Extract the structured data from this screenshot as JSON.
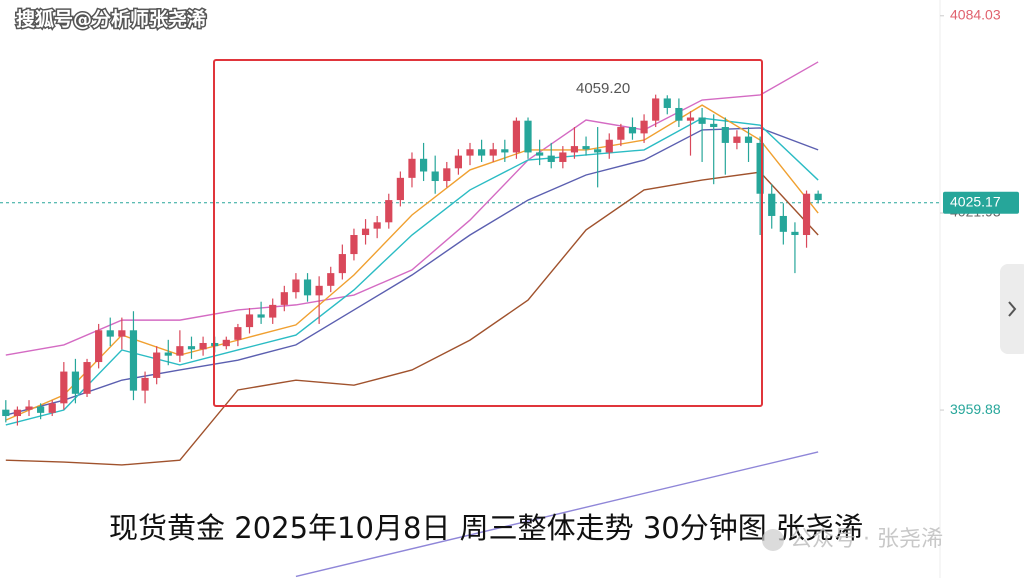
{
  "chart_data": {
    "type": "candlestick",
    "title": "现货黄金 2025年10月8日 周三整体走势 30分钟图 张尧浠",
    "watermark": "搜狐号@分析师张尧浠",
    "footer_watermark": "公众号 · 张尧浠",
    "max_label": "4059.20",
    "current_price": 4025.17,
    "up_color": "#d9485a",
    "down_color": "#26a69a",
    "xlim": [
      -0.5,
      80.5
    ],
    "ylim": [
      3907,
      4089
    ],
    "yticks": [
      4084.03,
      4021.93,
      3959.88
    ],
    "grid": false,
    "x": [
      0,
      1,
      2,
      3,
      4,
      5,
      6,
      7,
      8,
      9,
      10,
      11,
      12,
      13,
      14,
      15,
      16,
      17,
      18,
      19,
      20,
      21,
      22,
      23,
      24,
      25,
      26,
      27,
      28,
      29,
      30,
      31,
      32,
      33,
      34,
      35,
      36,
      37,
      38,
      39,
      40,
      41,
      42,
      43,
      44,
      45,
      46,
      47,
      48,
      49,
      50,
      51,
      52,
      53,
      54,
      55,
      56,
      57,
      58,
      59,
      60,
      61,
      62,
      63,
      64,
      65,
      66,
      67,
      68,
      69,
      70
    ],
    "open": [
      3960,
      3958,
      3960,
      3961,
      3959,
      3962,
      3972,
      3965,
      3975,
      3985,
      3983,
      3985,
      3966,
      3970,
      3978,
      3977,
      3980,
      3979,
      3981,
      3980,
      3982,
      3986,
      3990,
      3989,
      3993,
      3997,
      4001,
      3996,
      3999,
      4003,
      4009,
      4015,
      4017,
      4019,
      4026,
      4033,
      4039,
      4035,
      4032,
      4036,
      4040,
      4042,
      4040,
      4042,
      4041,
      4051,
      4041,
      4040,
      4038,
      4041,
      4043,
      4042,
      4041,
      4045,
      4049,
      4047,
      4051,
      4058,
      4055,
      4051,
      4052,
      4050,
      4049,
      4044,
      4046,
      4044,
      4028,
      4021,
      4016,
      4015,
      4028
    ],
    "high": [
      3963,
      3961,
      3963,
      3962,
      3963,
      3975,
      3976,
      3976,
      3987,
      3989,
      3989,
      3991,
      3972,
      3980,
      3982,
      3985,
      3983,
      3983,
      3983,
      3983,
      3987,
      3992,
      3994,
      3995,
      3999,
      4003,
      4003,
      4002,
      4005,
      4012,
      4017,
      4020,
      4021,
      4028,
      4035,
      4041,
      4044,
      4040,
      4038,
      4042,
      4044,
      4045,
      4044,
      4045,
      4052,
      4052,
      4045,
      4044,
      4043,
      4049,
      4046,
      4049,
      4047,
      4050,
      4052,
      4053,
      4059.2,
      4059,
      4058,
      4054,
      4055,
      4053,
      4052,
      4048,
      4049,
      4046,
      4031,
      4025,
      4019,
      4029,
      4029
    ],
    "low": [
      3956,
      3955,
      3958,
      3957,
      3958,
      3960,
      3962,
      3964,
      3973,
      3980,
      3979,
      3963,
      3962,
      3968,
      3974,
      3975,
      3976,
      3977,
      3978,
      3979,
      3980,
      3984,
      3987,
      3987,
      3991,
      3995,
      3994,
      3987,
      3997,
      4001,
      4007,
      4012,
      4014,
      4017,
      4024,
      4030,
      4032,
      4028,
      4030,
      4034,
      4037,
      4038,
      4038,
      4038,
      4039,
      4039,
      4037,
      4036,
      4036,
      4039,
      4040,
      4030,
      4039,
      4043,
      4045,
      4044,
      4049,
      4053,
      4049,
      4040,
      4038,
      4031,
      4034,
      4042,
      4038,
      4015,
      4017,
      4012,
      4003,
      4011,
      4025
    ],
    "close": [
      3958,
      3960,
      3961,
      3959,
      3962,
      3972,
      3965,
      3975,
      3985,
      3983,
      3985,
      3966,
      3970,
      3978,
      3977,
      3980,
      3979,
      3981,
      3980,
      3982,
      3986,
      3990,
      3989,
      3993,
      3997,
      4001,
      3996,
      3999,
      4003,
      4009,
      4015,
      4017,
      4019,
      4026,
      4033,
      4039,
      4035,
      4032,
      4036,
      4040,
      4042,
      4040,
      4042,
      4041,
      4051,
      4041,
      4040,
      4038,
      4041,
      4043,
      4042,
      4041,
      4045,
      4049,
      4047,
      4051,
      4058,
      4055,
      4051,
      4052,
      4050,
      4049,
      4044,
      4046,
      4044,
      4028,
      4021,
      4016,
      4015,
      4028,
      4026
    ],
    "lines": [
      {
        "color": "#d46bc3",
        "x": [
          0,
          5,
          10,
          15,
          20,
          25,
          30,
          35,
          40,
          45,
          50,
          55,
          60,
          65,
          70
        ],
        "values": [
          3977.2,
          3980.4,
          3988.2,
          3988.2,
          3991.4,
          3993.0,
          3996.1,
          4004.0,
          4019.7,
          4038.6,
          4051.2,
          4048.1,
          4057.5,
          4059.1,
          4069.5
        ]
      },
      {
        "color": "#a0522d",
        "x": [
          0,
          5,
          10,
          15,
          20,
          25,
          30,
          35,
          40,
          45,
          50,
          55,
          60,
          65,
          70
        ],
        "values": [
          3944.1,
          3943.5,
          3942.6,
          3944.1,
          3966.2,
          3969.3,
          3967.7,
          3972.5,
          3981.9,
          3994.5,
          4016.6,
          4029.2,
          4032.3,
          4034.8,
          4015.0
        ]
      },
      {
        "color": "#5b5fb0",
        "x": [
          0,
          5,
          10,
          15,
          20,
          25,
          30,
          35,
          40,
          45,
          50,
          55,
          60,
          65,
          70
        ],
        "values": [
          3958.3,
          3963.0,
          3969.3,
          3972.5,
          3975.6,
          3980.4,
          3991.4,
          4002.4,
          4015.0,
          4026.0,
          4033.9,
          4038.6,
          4048.1,
          4048.7,
          4041.8
        ]
      },
      {
        "color": "#2bbcc4",
        "x": [
          0,
          5,
          10,
          15,
          20,
          25,
          30,
          35,
          40,
          45,
          50,
          55,
          60,
          65,
          70
        ],
        "values": [
          3955.2,
          3959.9,
          3978.8,
          3974.1,
          3978.8,
          3983.5,
          3997.7,
          4015.0,
          4029.2,
          4038.6,
          4040.2,
          4041.8,
          4051.8,
          4049.6,
          4032.3
        ]
      },
      {
        "color": "#f0a030",
        "x": [
          0,
          5,
          10,
          15,
          20,
          25,
          30,
          35,
          40,
          45,
          50,
          55,
          60,
          65,
          70
        ],
        "values": [
          3956.7,
          3964.6,
          3983.5,
          3977.2,
          3981.9,
          3986.7,
          4002.4,
          4021.3,
          4035.5,
          4041.8,
          4041.8,
          4044.9,
          4055.9,
          4044.9,
          4021.9
        ]
      },
      {
        "color": "#8f86d8",
        "x": [
          25,
          70
        ],
        "values": [
          3907.5,
          3946.7
        ]
      }
    ]
  }
}
